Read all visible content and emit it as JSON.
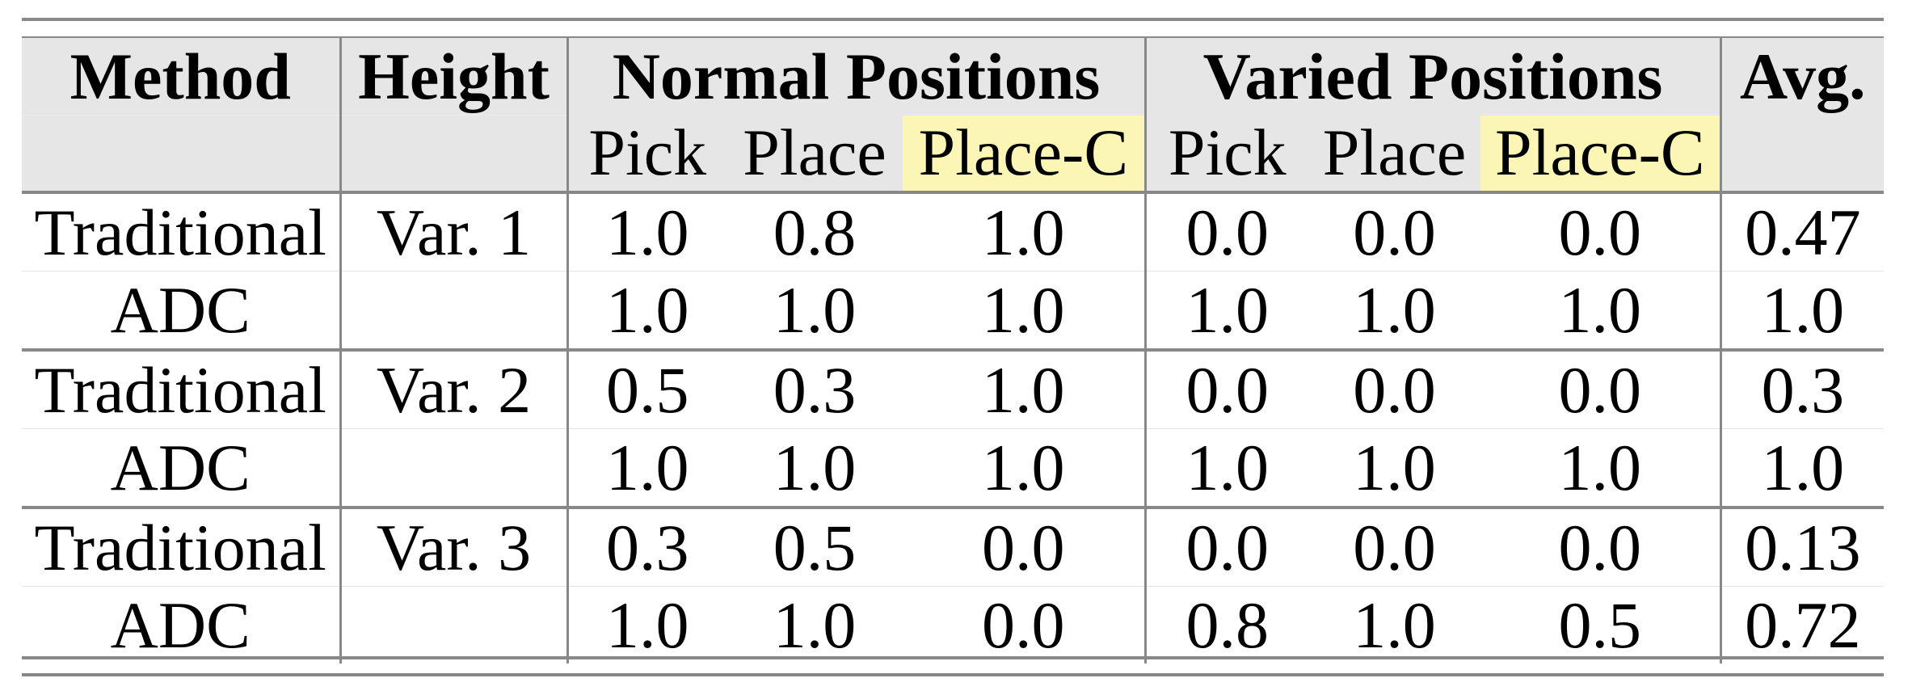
{
  "header": {
    "method": "Method",
    "height": "Height",
    "normal_positions": "Normal Positions",
    "varied_positions": "Varied Positions",
    "avg": "Avg.",
    "sub_columns": [
      "Pick",
      "Place",
      "Place-C",
      "Pick",
      "Place",
      "Place-C"
    ]
  },
  "highlight_color": "#fbf6b6",
  "rows": [
    {
      "method": "Traditional",
      "height": "Var. 1",
      "values": [
        "1.0",
        "0.8",
        "1.0",
        "0.0",
        "0.0",
        "0.0"
      ],
      "avg": "0.47"
    },
    {
      "method": "ADC",
      "height": "",
      "values": [
        "1.0",
        "1.0",
        "1.0",
        "1.0",
        "1.0",
        "1.0"
      ],
      "avg": "1.0"
    },
    {
      "method": "Traditional",
      "height": "Var. 2",
      "values": [
        "0.5",
        "0.3",
        "1.0",
        "0.0",
        "0.0",
        "0.0"
      ],
      "avg": "0.3"
    },
    {
      "method": "ADC",
      "height": "",
      "values": [
        "1.0",
        "1.0",
        "1.0",
        "1.0",
        "1.0",
        "1.0"
      ],
      "avg": "1.0"
    },
    {
      "method": "Traditional",
      "height": "Var. 3",
      "values": [
        "0.3",
        "0.5",
        "0.0",
        "0.0",
        "0.0",
        "0.0"
      ],
      "avg": "0.13"
    },
    {
      "method": "ADC",
      "height": "",
      "values": [
        "1.0",
        "1.0",
        "0.0",
        "0.8",
        "1.0",
        "0.5"
      ],
      "avg": "0.72"
    }
  ]
}
